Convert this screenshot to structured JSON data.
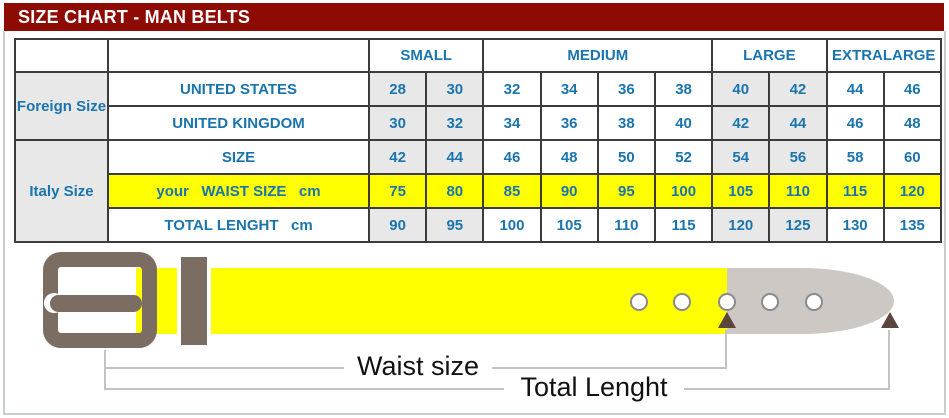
{
  "title": "SIZE CHART - MAN BELTS",
  "colors": {
    "header_bg": "#8e0b04",
    "text_blue": "#1a74ae",
    "cell_gray": "#e8e8e8",
    "row_yellow": "#ffff00",
    "belt_yellow": "#ffff00",
    "belt_tip": "#cdc8c3",
    "buckle": "#7b6d62",
    "arrow": "#5a463c",
    "line_gray": "#c3c3c3"
  },
  "chart_data": {
    "type": "table",
    "title": "SIZE CHART - MAN BELTS",
    "size_groups": [
      {
        "label": "SMALL",
        "span": 2,
        "shaded": true
      },
      {
        "label": "MEDIUM",
        "span": 4,
        "shaded": false
      },
      {
        "label": "LARGE",
        "span": 2,
        "shaded": true
      },
      {
        "label": "EXTRALARGE",
        "span": 2,
        "shaded": false
      }
    ],
    "row_groups": [
      {
        "label": "Foreign Size",
        "row_span": 2,
        "start_index": 0
      },
      {
        "label": "Italy Size",
        "row_span": 3,
        "start_index": 2
      }
    ],
    "rows": [
      {
        "label": "UNITED STATES",
        "highlight": false,
        "values": [
          "28",
          "30",
          "32",
          "34",
          "36",
          "38",
          "40",
          "42",
          "44",
          "46"
        ]
      },
      {
        "label": "UNITED KINGDOM",
        "highlight": false,
        "values": [
          "30",
          "32",
          "34",
          "36",
          "38",
          "40",
          "42",
          "44",
          "46",
          "48"
        ]
      },
      {
        "label": "SIZE",
        "highlight": false,
        "values": [
          "42",
          "44",
          "46",
          "48",
          "50",
          "52",
          "54",
          "56",
          "58",
          "60"
        ]
      },
      {
        "label": "your   WAIST SIZE   cm",
        "highlight": true,
        "values": [
          "75",
          "80",
          "85",
          "90",
          "95",
          "100",
          "105",
          "110",
          "115",
          "120"
        ]
      },
      {
        "label": "TOTAL LENGHT   cm",
        "highlight": false,
        "values": [
          "90",
          "95",
          "100",
          "105",
          "110",
          "115",
          "120",
          "125",
          "130",
          "135"
        ]
      }
    ]
  },
  "diagram": {
    "waist_label": "Waist size",
    "total_label": "Total Lenght",
    "hole_count": 5
  }
}
